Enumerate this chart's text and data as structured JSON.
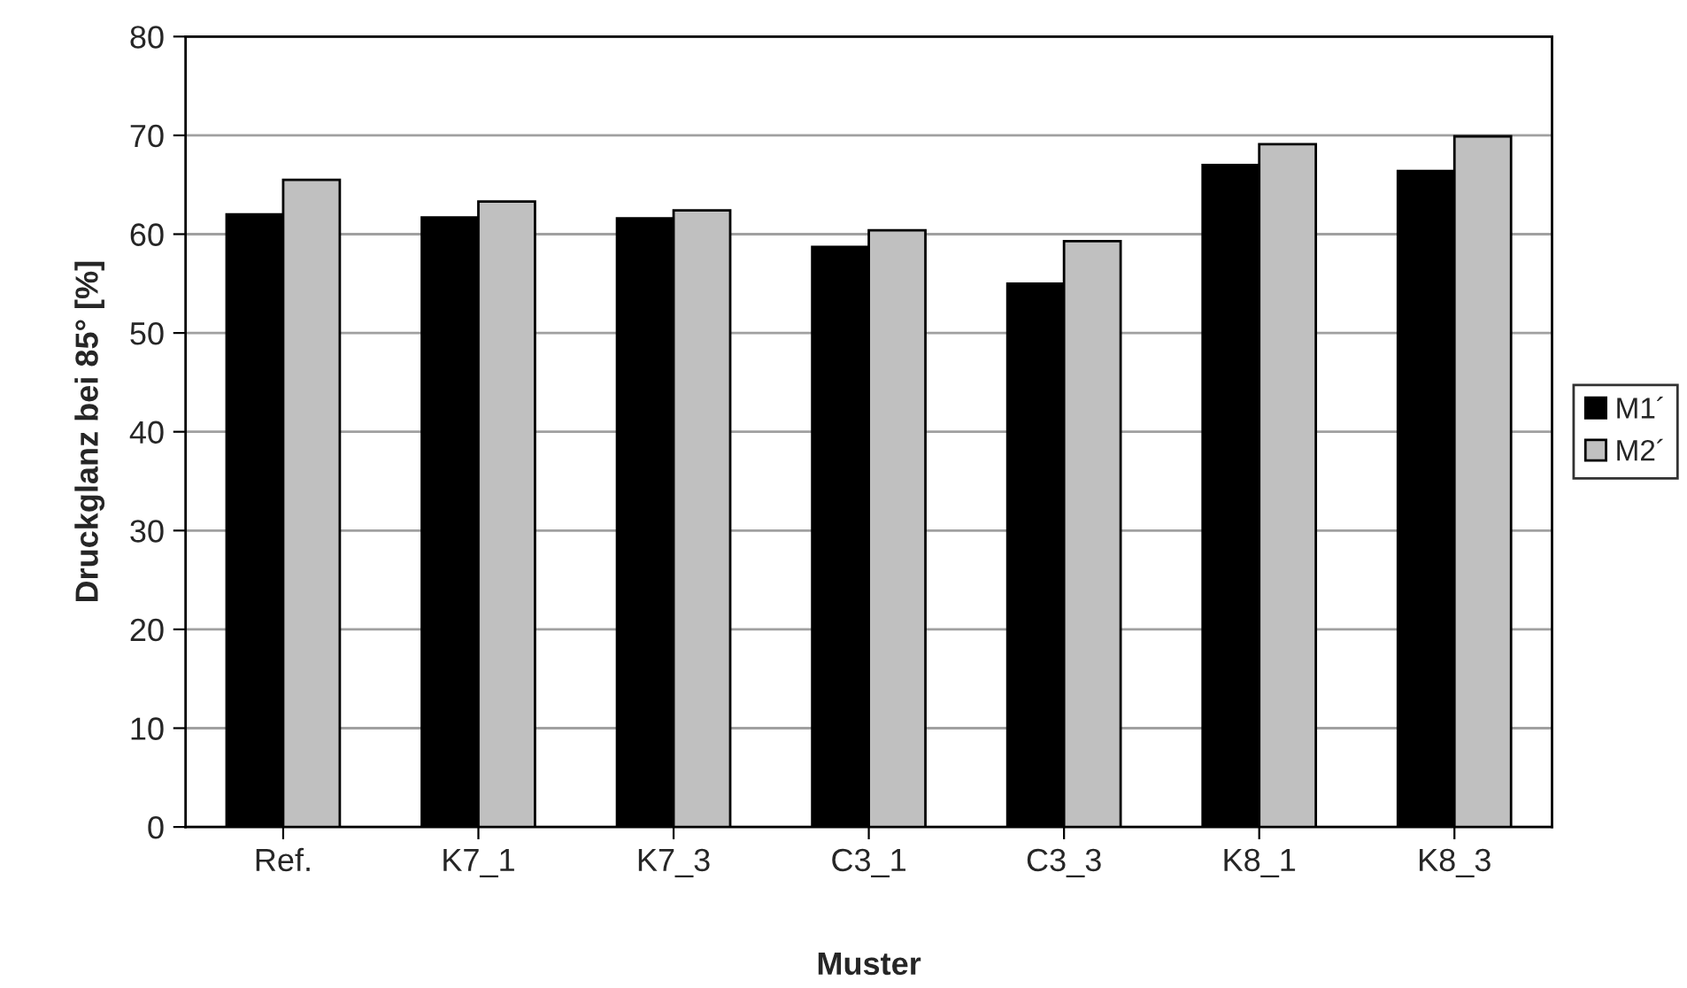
{
  "chart_data": {
    "type": "bar",
    "xlabel": "Muster",
    "ylabel": "Druckglanz bei 85° [%]",
    "categories": [
      "Ref.",
      "K7_1",
      "K7_3",
      "C3_1",
      "C3_3",
      "K8_1",
      "K8_3"
    ],
    "series": [
      {
        "name": "M1´",
        "color": "#000000",
        "values": [
          62.0,
          61.7,
          61.6,
          58.7,
          55.0,
          67.0,
          66.4
        ]
      },
      {
        "name": "M2´",
        "color": "#c0c0c0",
        "values": [
          65.5,
          63.3,
          62.4,
          60.4,
          59.3,
          69.1,
          69.9
        ]
      }
    ],
    "ylim": [
      0,
      80
    ],
    "yticks": [
      0,
      10,
      20,
      30,
      40,
      50,
      60,
      70,
      80
    ],
    "grid": "y",
    "legend": "right"
  }
}
